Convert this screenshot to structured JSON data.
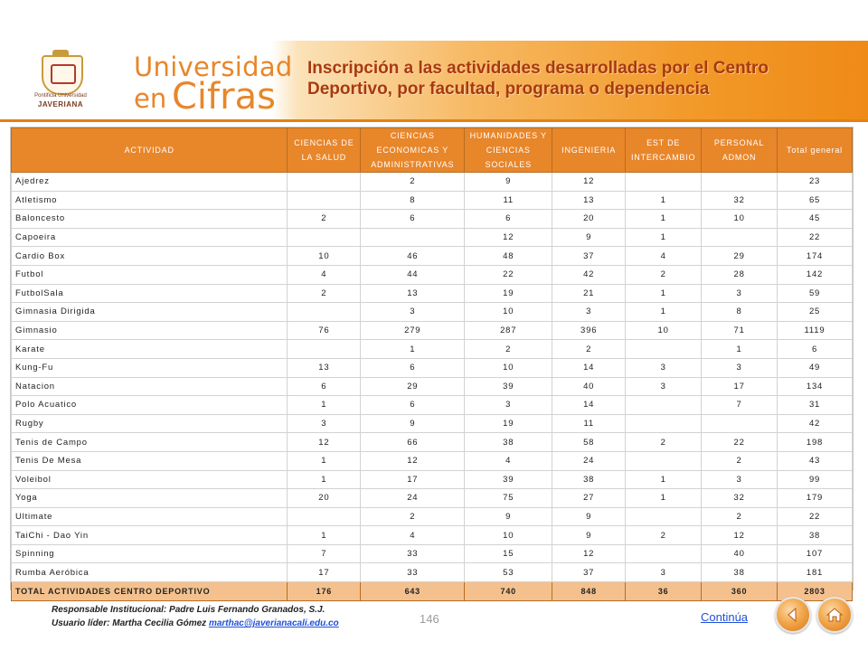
{
  "header": {
    "logo_line1": "Pontificia Universidad",
    "logo_line2": "JAVERIANA",
    "brand_line1": "Universidad",
    "brand_en": "en",
    "brand_cifras": "Cifras",
    "title": "Inscripción a las actividades desarrolladas por el Centro Deportivo, por facultad, programa o dependencia"
  },
  "table": {
    "headers": [
      "ACTIVIDAD",
      "CIENCIAS DE LA SALUD",
      "CIENCIAS ECONOMICAS Y ADMINISTRATIVAS",
      "HUMANIDADES Y CIENCIAS SOCIALES",
      "INGENIERIA",
      "EST DE INTERCAMBIO",
      "PERSONAL ADMON",
      "Total general"
    ],
    "rows": [
      [
        "Ajedrez",
        "",
        "2",
        "9",
        "12",
        "",
        "",
        "23"
      ],
      [
        "Atletismo",
        "",
        "8",
        "11",
        "13",
        "1",
        "32",
        "65"
      ],
      [
        "Baloncesto",
        "2",
        "6",
        "6",
        "20",
        "1",
        "10",
        "45"
      ],
      [
        "Capoeira",
        "",
        "",
        "12",
        "9",
        "1",
        "",
        "22"
      ],
      [
        "Cardio Box",
        "10",
        "46",
        "48",
        "37",
        "4",
        "29",
        "174"
      ],
      [
        "Futbol",
        "4",
        "44",
        "22",
        "42",
        "2",
        "28",
        "142"
      ],
      [
        "FutbolSala",
        "2",
        "13",
        "19",
        "21",
        "1",
        "3",
        "59"
      ],
      [
        "Gimnasia Dirigida",
        "",
        "3",
        "10",
        "3",
        "1",
        "8",
        "25"
      ],
      [
        "Gimnasio",
        "76",
        "279",
        "287",
        "396",
        "10",
        "71",
        "1119"
      ],
      [
        "Karate",
        "",
        "1",
        "2",
        "2",
        "",
        "1",
        "6"
      ],
      [
        "Kung-Fu",
        "13",
        "6",
        "10",
        "14",
        "3",
        "3",
        "49"
      ],
      [
        "Natacion",
        "6",
        "29",
        "39",
        "40",
        "3",
        "17",
        "134"
      ],
      [
        "Polo Acuatico",
        "1",
        "6",
        "3",
        "14",
        "",
        "7",
        "31"
      ],
      [
        "Rugby",
        "3",
        "9",
        "19",
        "11",
        "",
        "",
        "42"
      ],
      [
        "Tenis de Campo",
        "12",
        "66",
        "38",
        "58",
        "2",
        "22",
        "198"
      ],
      [
        "Tenis De Mesa",
        "1",
        "12",
        "4",
        "24",
        "",
        "2",
        "43"
      ],
      [
        "Voleibol",
        "1",
        "17",
        "39",
        "38",
        "1",
        "3",
        "99"
      ],
      [
        "Yoga",
        "20",
        "24",
        "75",
        "27",
        "1",
        "32",
        "179"
      ],
      [
        "Ultimate",
        "",
        "2",
        "9",
        "9",
        "",
        "2",
        "22"
      ],
      [
        "TaiChi - Dao Yin",
        "1",
        "4",
        "10",
        "9",
        "2",
        "12",
        "38"
      ],
      [
        "Spinning",
        "7",
        "33",
        "15",
        "12",
        "",
        "40",
        "107"
      ],
      [
        "Rumba Aeróbica",
        "17",
        "33",
        "53",
        "37",
        "3",
        "38",
        "181"
      ]
    ],
    "total": [
      "TOTAL ACTIVIDADES CENTRO DEPORTIVO",
      "176",
      "643",
      "740",
      "848",
      "36",
      "360",
      "2803"
    ]
  },
  "footer": {
    "responsable": "Responsable Institucional: Padre Luis Fernando Granados, S.J.",
    "usuario_label": "Usuario líder: Martha Cecilia Gómez",
    "email": "marthac@javerianacali.edu.co",
    "page_number": "146",
    "continua": "Continúa"
  },
  "nav": {
    "back_icon": "back-arrow-icon",
    "home_icon": "home-icon"
  },
  "colors": {
    "accent": "#e8862a",
    "title": "#a83a0e",
    "total_row": "#f4c18e"
  }
}
